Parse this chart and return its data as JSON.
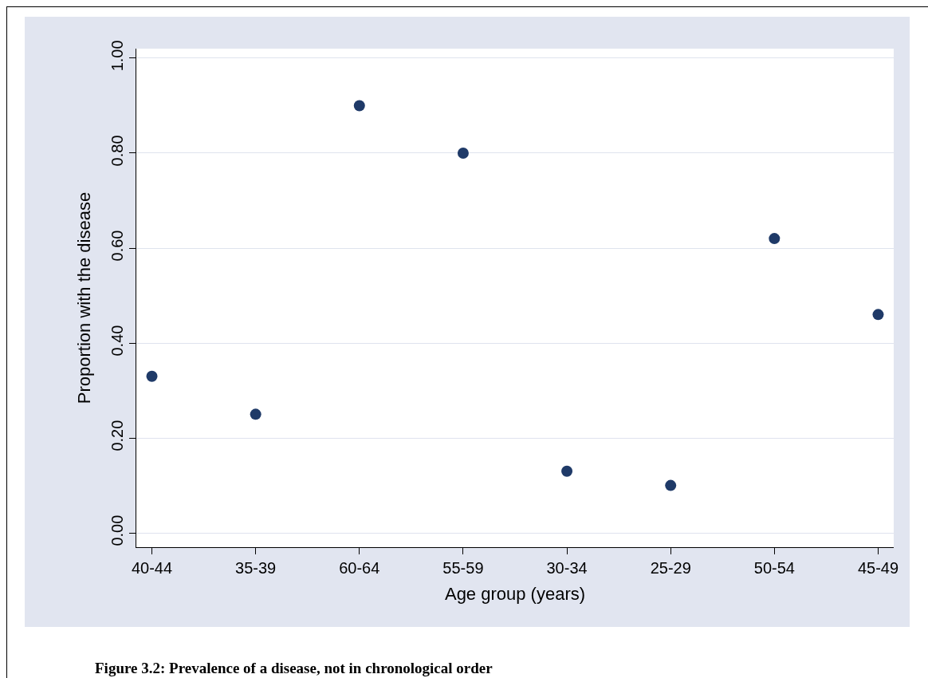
{
  "chart_data": {
    "type": "scatter",
    "xlabel": "Age group (years)",
    "ylabel": "Proportion with the disease",
    "categories": [
      "40-44",
      "35-39",
      "60-64",
      "55-59",
      "30-34",
      "25-29",
      "50-54",
      "45-49"
    ],
    "values": [
      0.33,
      0.25,
      0.9,
      0.8,
      0.13,
      0.1,
      0.62,
      0.46
    ],
    "color": "#1f3a68",
    "marker": "circle",
    "grid": "y",
    "legend": false,
    "ylim": [
      -0.03,
      1.02
    ],
    "yticks": [
      {
        "value": 0,
        "label": "0.00"
      },
      {
        "value": 0.2,
        "label": "0.20"
      },
      {
        "value": 0.4,
        "label": "0.40"
      },
      {
        "value": 0.6,
        "label": "0.60"
      },
      {
        "value": 0.8,
        "label": "0.80"
      },
      {
        "value": 1,
        "label": "1.00"
      }
    ],
    "annotations": [
      "Figure 3.2: Prevalence of a disease, not in chronological order"
    ]
  }
}
